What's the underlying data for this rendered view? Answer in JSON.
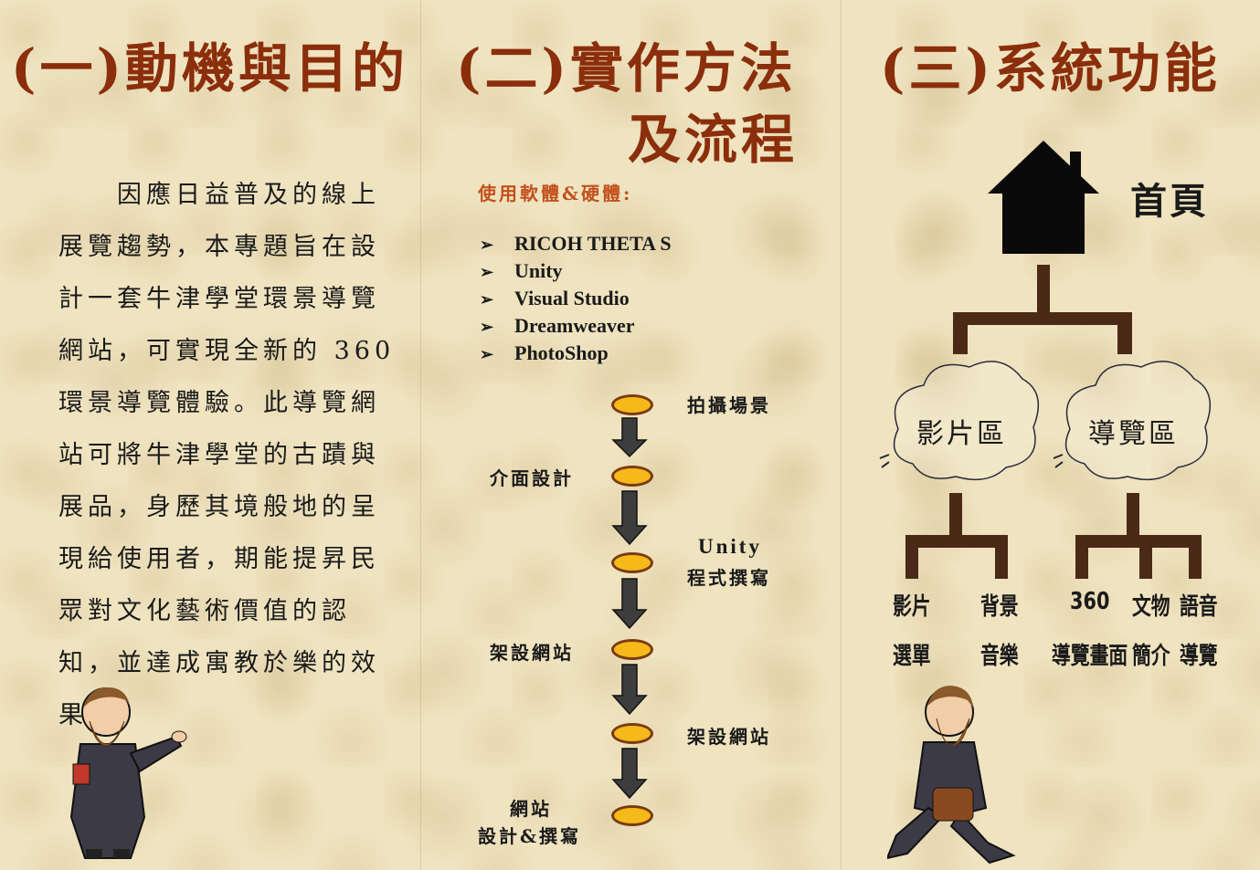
{
  "panel1": {
    "title": "(一)動機與目的",
    "paragraph": "因應日益普及的線上展覽趨勢，本專題旨在設計一套牛津學堂環景導覽網站，可實現全新的 360 環景導覽體驗。此導覽網站可將牛津學堂的古蹟與展品，身歷其境般地的呈現給使用者，期能提昇民眾對文化藝術價值的認知，並達成寓教於樂的效果。"
  },
  "panel2": {
    "title_line1": "(二)實作方法",
    "title_line2": "及流程",
    "subtitle": "使用軟體&硬體:",
    "software": [
      "RICOH THETA S",
      "Unity",
      "Visual Studio",
      "Dreamweaver",
      "PhotoShop"
    ],
    "flow_steps": [
      "拍攝場景",
      "介面設計",
      "Unity",
      "程式撰寫",
      "架設網站",
      "架設網站",
      "網站",
      "設計&撰寫"
    ]
  },
  "panel3": {
    "title": "(三)系統功能",
    "home_label": "首頁",
    "clouds": [
      "影片區",
      "導覽區"
    ],
    "leaves": [
      "影片",
      "選單",
      "背景",
      "音樂",
      "360",
      "導覽畫面",
      "文物",
      "簡介",
      "語音",
      "導覽"
    ]
  },
  "colors": {
    "heading": "#8b2e0b",
    "subtitle": "#c2501c",
    "tree": "#4a2a17",
    "oval": "#f5b91a",
    "background": "#efe3c0"
  }
}
